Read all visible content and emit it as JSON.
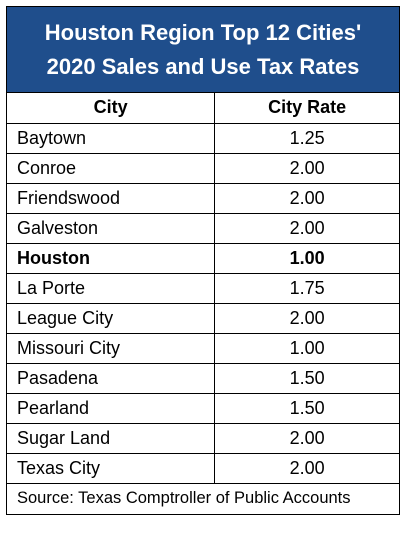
{
  "title": {
    "line1": "Houston Region Top 12 Cities'",
    "line2": "2020 Sales and Use Tax Rates"
  },
  "columns": {
    "city": "City",
    "rate": "City Rate"
  },
  "rows": [
    {
      "city": "Baytown",
      "rate": "1.25",
      "bold": false
    },
    {
      "city": "Conroe",
      "rate": "2.00",
      "bold": false
    },
    {
      "city": "Friendswood",
      "rate": "2.00",
      "bold": false
    },
    {
      "city": "Galveston",
      "rate": "2.00",
      "bold": false
    },
    {
      "city": "Houston",
      "rate": "1.00",
      "bold": true
    },
    {
      "city": "La Porte",
      "rate": "1.75",
      "bold": false
    },
    {
      "city": "League City",
      "rate": "2.00",
      "bold": false
    },
    {
      "city": "Missouri City",
      "rate": "1.00",
      "bold": false
    },
    {
      "city": "Pasadena",
      "rate": "1.50",
      "bold": false
    },
    {
      "city": "Pearland",
      "rate": "1.50",
      "bold": false
    },
    {
      "city": "Sugar Land",
      "rate": "2.00",
      "bold": false
    },
    {
      "city": "Texas City",
      "rate": "2.00",
      "bold": false
    }
  ],
  "source": "Source: Texas Comptroller of Public Accounts",
  "colors": {
    "title_bg": "#1f4e8c",
    "title_text": "#ffffff"
  }
}
